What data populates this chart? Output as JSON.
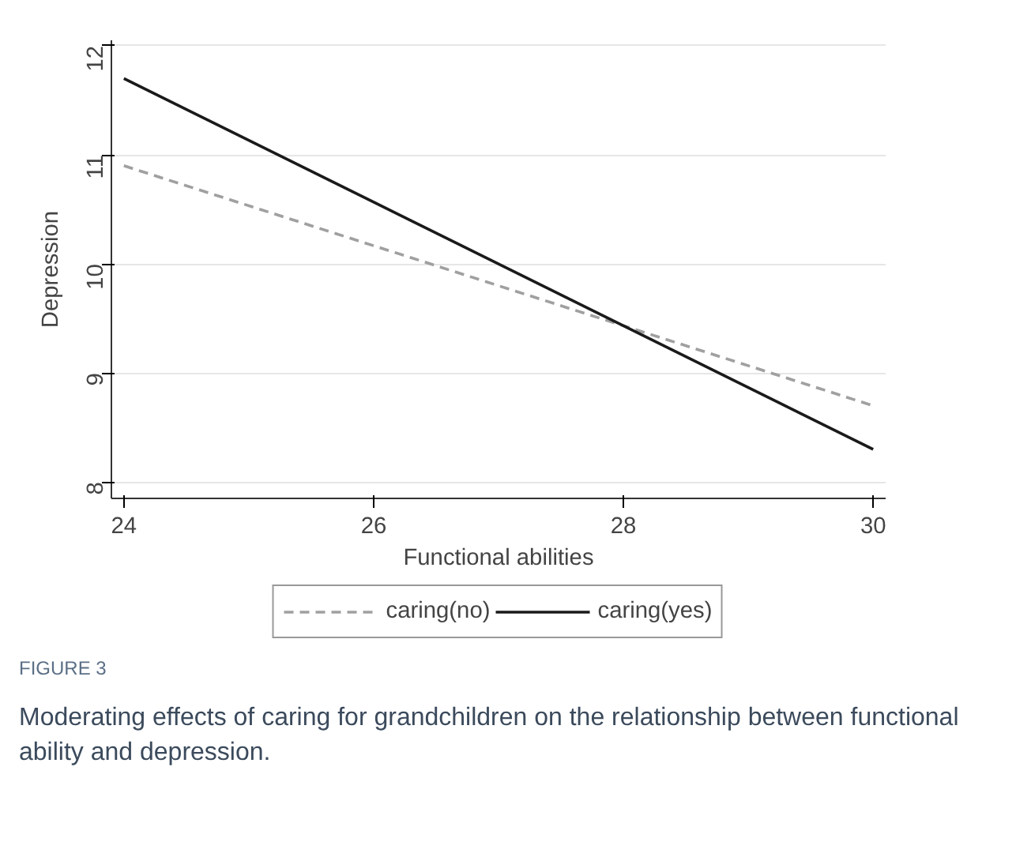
{
  "chart_data": {
    "type": "line",
    "xlabel": "Functional abilities",
    "ylabel": "Depression",
    "x": [
      24,
      30
    ],
    "series": [
      {
        "name": "caring(no)",
        "color": "#a0a0a0",
        "values": [
          10.9,
          8.7
        ],
        "line_style": "dashed"
      },
      {
        "name": "caring(yes)",
        "color": "#1a1a1a",
        "values": [
          11.7,
          8.3
        ],
        "line_style": "solid"
      }
    ],
    "xlim": [
      23.9,
      30.1
    ],
    "ylim": [
      7.85,
      12.05
    ],
    "xticks": [
      24,
      26,
      28,
      30
    ],
    "yticks": [
      8,
      9,
      10,
      11,
      12
    ],
    "grid": "y",
    "legend": "bottom",
    "marker": "none",
    "annotations": [
      "FIGURE 3",
      "Moderating effects of caring for grandchildren on the relationship between functional ability and depression."
    ]
  }
}
